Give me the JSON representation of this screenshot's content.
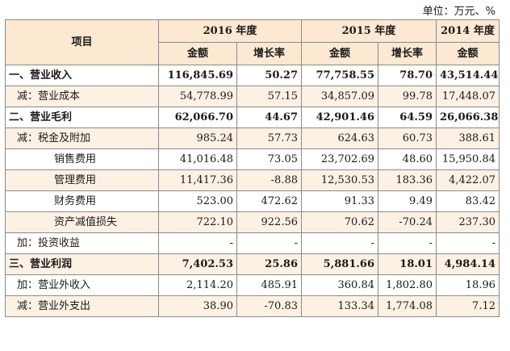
{
  "unit": "单位：万元、%",
  "header": {
    "item": "项目",
    "years": [
      "2016 年度",
      "2015 年度",
      "2014 年度"
    ],
    "amount": "金额",
    "growth": "增长率"
  },
  "rows": [
    {
      "label": "一、营业收入",
      "indent": 0,
      "bold": true,
      "v": [
        "116,845.69",
        "50.27",
        "77,758.55",
        "78.70",
        "43,514.44"
      ]
    },
    {
      "label": "减：营业成本",
      "indent": 1,
      "bold": false,
      "v": [
        "54,778.99",
        "57.15",
        "34,857.09",
        "99.78",
        "17,448.07"
      ]
    },
    {
      "label": "二、营业毛利",
      "indent": 0,
      "bold": true,
      "v": [
        "62,066.70",
        "44.67",
        "42,901.46",
        "64.59",
        "26,066.38"
      ]
    },
    {
      "label": "减：税金及附加",
      "indent": 1,
      "bold": false,
      "v": [
        "985.24",
        "57.73",
        "624.63",
        "60.73",
        "388.61"
      ]
    },
    {
      "label": "销售费用",
      "indent": 2,
      "bold": false,
      "v": [
        "41,016.48",
        "73.05",
        "23,702.69",
        "48.60",
        "15,950.84"
      ]
    },
    {
      "label": "管理费用",
      "indent": 2,
      "bold": false,
      "v": [
        "11,417.36",
        "-8.88",
        "12,530.53",
        "183.36",
        "4,422.07"
      ]
    },
    {
      "label": "财务费用",
      "indent": 2,
      "bold": false,
      "v": [
        "523.00",
        "472.62",
        "91.33",
        "9.49",
        "83.42"
      ]
    },
    {
      "label": "资产减值损失",
      "indent": 2,
      "bold": false,
      "v": [
        "722.10",
        "922.56",
        "70.62",
        "-70.24",
        "237.30"
      ]
    },
    {
      "label": "加：投资收益",
      "indent": 1,
      "bold": false,
      "v": [
        "-",
        "-",
        "-",
        "-",
        "-"
      ]
    },
    {
      "label": "三、营业利润",
      "indent": 0,
      "bold": true,
      "v": [
        "7,402.53",
        "25.86",
        "5,881.66",
        "18.01",
        "4,984.14"
      ]
    },
    {
      "label": "加：营业外收入",
      "indent": 1,
      "bold": false,
      "v": [
        "2,114.20",
        "485.91",
        "360.84",
        "1,802.80",
        "18.96"
      ]
    },
    {
      "label": "减：营业外支出",
      "indent": 1,
      "bold": false,
      "v": [
        "38.90",
        "-70.83",
        "133.34",
        "1,774.08",
        "7.12"
      ]
    }
  ]
}
